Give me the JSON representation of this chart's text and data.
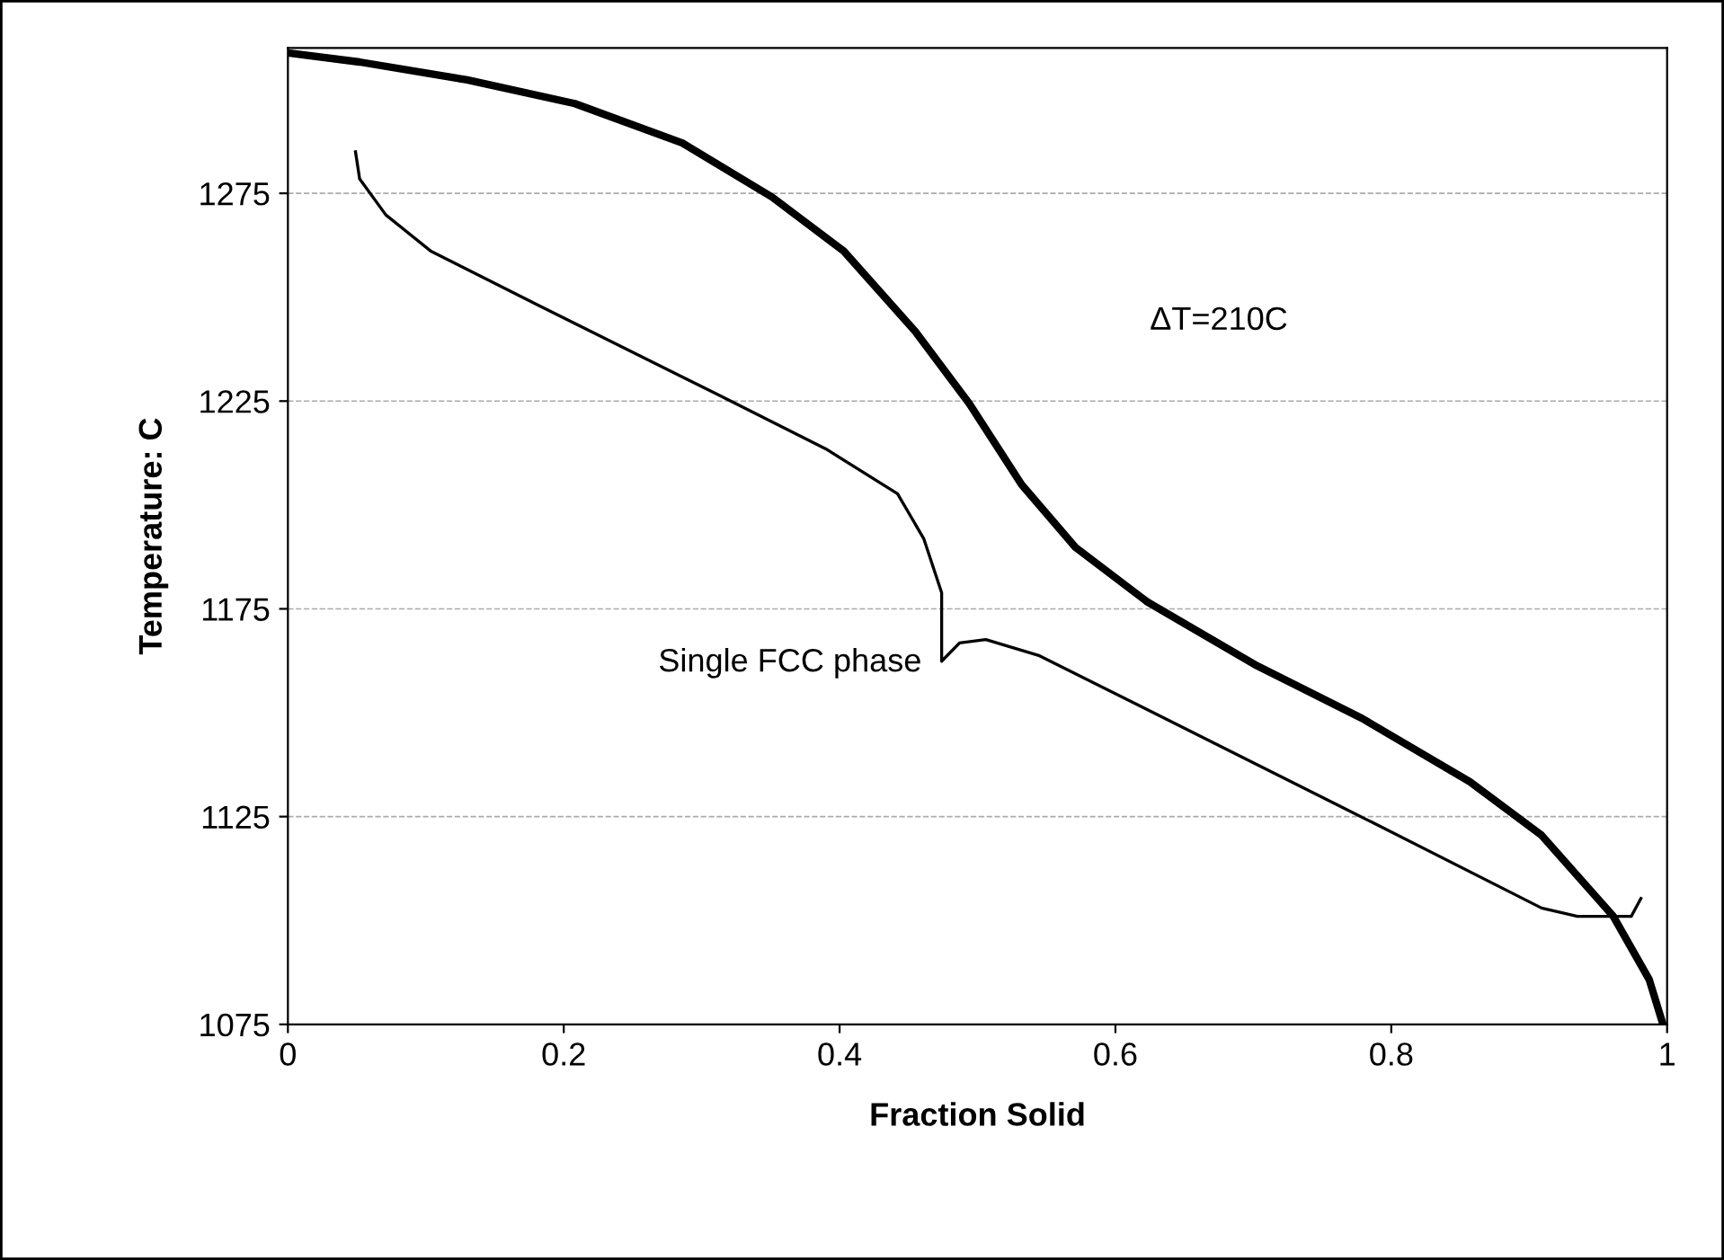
{
  "chart_data": {
    "type": "line",
    "xlabel": "Fraction Solid",
    "ylabel": "Temperature: C",
    "xlim": [
      0,
      1
    ],
    "xticks": [
      0,
      0.2,
      0.4,
      0.6,
      0.8,
      1
    ],
    "ylim": [
      1075,
      1310
    ],
    "yticks": [
      1075,
      1125,
      1175,
      1225,
      1275
    ],
    "grid": "y",
    "marker": "none",
    "line_style": "solid",
    "series": [
      {
        "color": "#000000",
        "x": [
          0,
          0.052,
          0.13,
          0.208,
          0.286,
          0.351,
          0.403,
          0.455,
          0.494,
          0.532,
          0.571,
          0.623,
          0.701,
          0.779,
          0.857,
          0.909,
          0.961,
          0.987,
          0.997
        ],
        "values": [
          1308.8,
          1306.6,
          1302.3,
          1296.6,
          1287.1,
          1274.1,
          1261.1,
          1241.7,
          1224.4,
          1204.9,
          1189.8,
          1176.7,
          1161.6,
          1148.6,
          1133.4,
          1120.5,
          1101,
          1085.8,
          1075
        ]
      },
      {
        "color": "#000000",
        "x": [
          0.049,
          0.052,
          0.071,
          0.104,
          0.182,
          0.312,
          0.39,
          0.442,
          0.461,
          0.474,
          0.474,
          0.487,
          0.506,
          0.545,
          0.636,
          0.766,
          0.909,
          0.935,
          0.974,
          0.981
        ],
        "values": [
          1285,
          1278.5,
          1269.8,
          1261,
          1248,
          1226.5,
          1213.5,
          1202.7,
          1191.9,
          1178.9,
          1162.4,
          1166.8,
          1167.6,
          1163.7,
          1148.6,
          1127,
          1103,
          1101,
          1101,
          1105.3
        ]
      }
    ],
    "annotations": [
      "ΔT=210C",
      "Single FCC phase"
    ]
  }
}
